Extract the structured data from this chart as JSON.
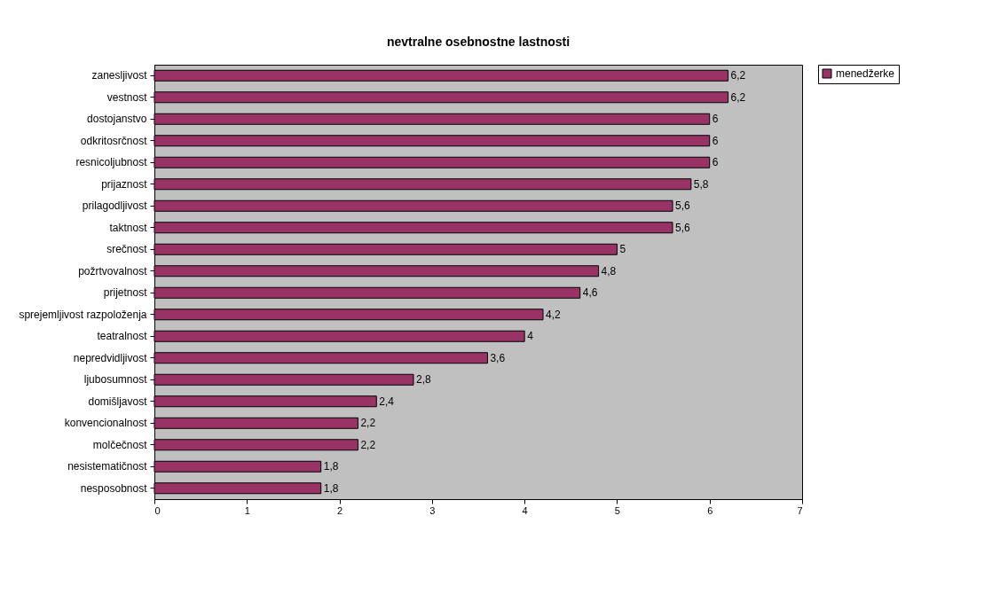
{
  "chart_data": {
    "type": "bar",
    "orientation": "horizontal",
    "title": "nevtralne osebnostne lastnosti",
    "categories": [
      "zanesljivost",
      "vestnost",
      "dostojanstvo",
      "odkritosrčnost",
      "resnicoljubnost",
      "prijaznost",
      "prilagodljivost",
      "taktnost",
      "srečnost",
      "požrtvovalnost",
      "prijetnost",
      "sprejemljivost razpoloženja",
      "teatralnost",
      "nepredvidljivost",
      "ljubosumnost",
      "domišljavost",
      "konvencionalnost",
      "molčečnost",
      "nesistematičnost",
      "nesposobnost"
    ],
    "series": [
      {
        "name": "menedžerke",
        "color": "#993366",
        "values": [
          6.2,
          6.2,
          6,
          6,
          6,
          5.8,
          5.6,
          5.6,
          5,
          4.8,
          4.6,
          4.2,
          4,
          3.6,
          2.8,
          2.4,
          2.2,
          2.2,
          1.8,
          1.8
        ],
        "value_labels": [
          "6,2",
          "6,2",
          "6",
          "6",
          "6",
          "5,8",
          "5,6",
          "5,6",
          "5",
          "4,8",
          "4,6",
          "4,2",
          "4",
          "3,6",
          "2,8",
          "2,4",
          "2,2",
          "2,2",
          "1,8",
          "1,8"
        ]
      }
    ],
    "xlim": [
      0,
      7
    ],
    "xticks": [
      0,
      1,
      2,
      3,
      4,
      5,
      6,
      7
    ],
    "grid": false,
    "legend": "right"
  }
}
